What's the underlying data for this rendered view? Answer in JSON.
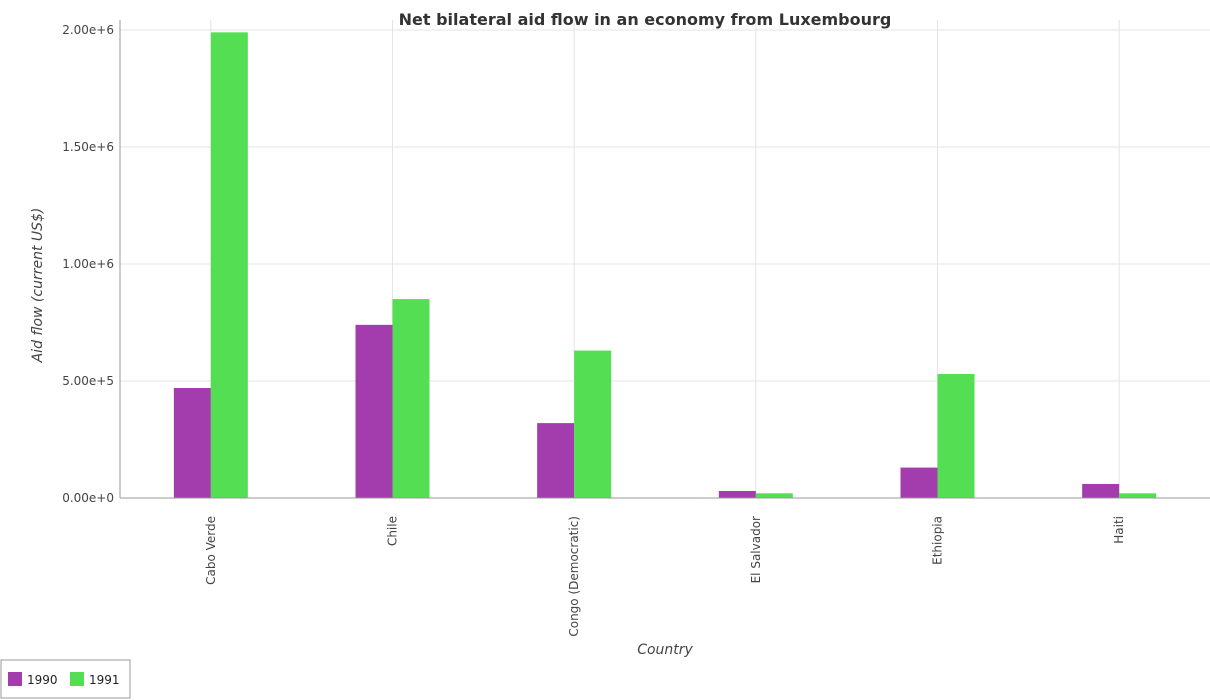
{
  "chart_data": {
    "type": "bar",
    "title": "Net bilateral aid flow in an economy from Luxembourg",
    "xlabel": "Country",
    "ylabel": "Aid flow (current US$)",
    "categories": [
      "Cabo Verde",
      "Chile",
      "Congo (Democratic)",
      "El Salvador",
      "Ethiopia",
      "Haiti"
    ],
    "series": [
      {
        "name": "1990",
        "color": "#a33cad",
        "values": [
          470000,
          740000,
          320000,
          30000,
          130000,
          60000
        ]
      },
      {
        "name": "1991",
        "color": "#53de53",
        "values": [
          1990000,
          850000,
          630000,
          20000,
          530000,
          20000
        ]
      }
    ],
    "ylim": [
      0,
      2000000
    ],
    "yticks": [
      0,
      500000,
      1000000,
      1500000,
      2000000
    ],
    "ytick_labels": [
      "0.00e+0",
      "5.00e+5",
      "1.00e+6",
      "1.50e+6",
      "2.00e+6"
    ],
    "grid": true,
    "legend_position": "bottom-left"
  }
}
